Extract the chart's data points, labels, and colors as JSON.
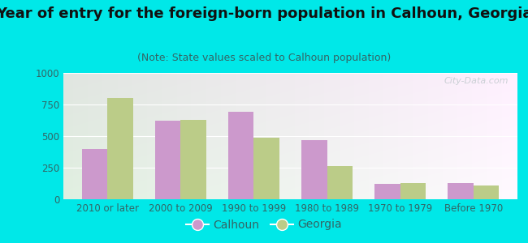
{
  "title": "Year of entry for the foreign-born population in Calhoun, Georgia",
  "subtitle": "(Note: State values scaled to Calhoun population)",
  "categories": [
    "2010 or later",
    "2000 to 2009",
    "1990 to 1999",
    "1980 to 1989",
    "1970 to 1979",
    "Before 1970"
  ],
  "calhoun_values": [
    400,
    620,
    690,
    470,
    120,
    130
  ],
  "georgia_values": [
    800,
    630,
    490,
    260,
    130,
    110
  ],
  "calhoun_color": "#cc99cc",
  "georgia_color": "#bbcc88",
  "background_outer": "#00e8e8",
  "ylim": [
    0,
    1000
  ],
  "yticks": [
    0,
    250,
    500,
    750,
    1000
  ],
  "bar_width": 0.35,
  "title_fontsize": 13,
  "subtitle_fontsize": 9,
  "tick_fontsize": 8.5,
  "legend_fontsize": 10,
  "tick_color": "#336666",
  "title_color": "#111111",
  "subtitle_color": "#336666"
}
